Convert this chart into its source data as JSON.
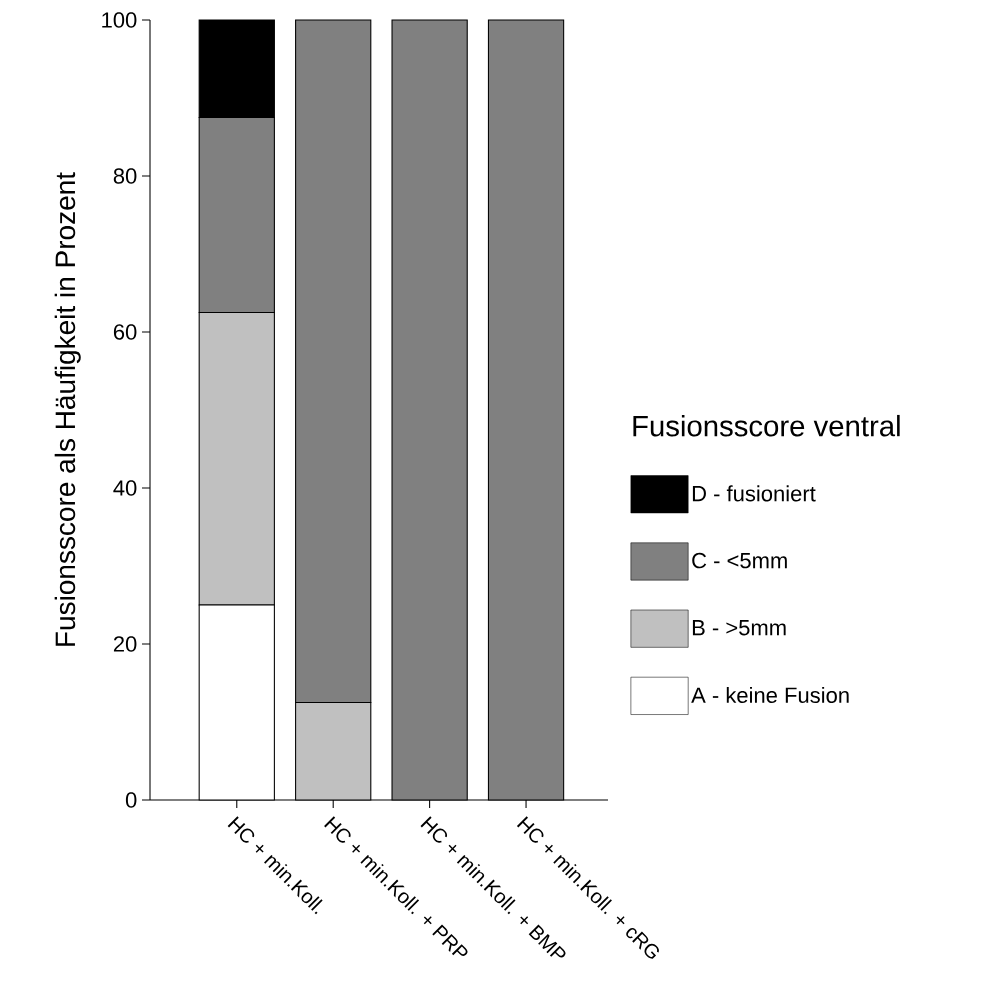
{
  "chart_data": {
    "type": "bar",
    "stacked": true,
    "ylabel": "Fusionsscore als Häufigkeit in Prozent",
    "legend_title": "Fusionsscore ventral",
    "categories": [
      "HC + min.Koll.",
      "HC + min.Koll. + PRP",
      "HC + min.Koll. + BMP",
      "HC + min.Koll. + cRG"
    ],
    "series": [
      {
        "name": "A - keine Fusion",
        "color": "#ffffff",
        "values": [
          25,
          0,
          0,
          0
        ]
      },
      {
        "name": "B - >5mm",
        "color": "#c0c0c0",
        "values": [
          37.5,
          12.5,
          0,
          0
        ]
      },
      {
        "name": "C - <5mm",
        "color": "#808080",
        "values": [
          25,
          87.5,
          100,
          100
        ]
      },
      {
        "name": "D - fusioniert",
        "color": "#000000",
        "values": [
          12.5,
          0,
          0,
          0
        ]
      }
    ],
    "ylim": [
      0,
      100
    ],
    "yticks": [
      0,
      20,
      40,
      60,
      80,
      100
    ],
    "grid": false,
    "legend": "right"
  }
}
